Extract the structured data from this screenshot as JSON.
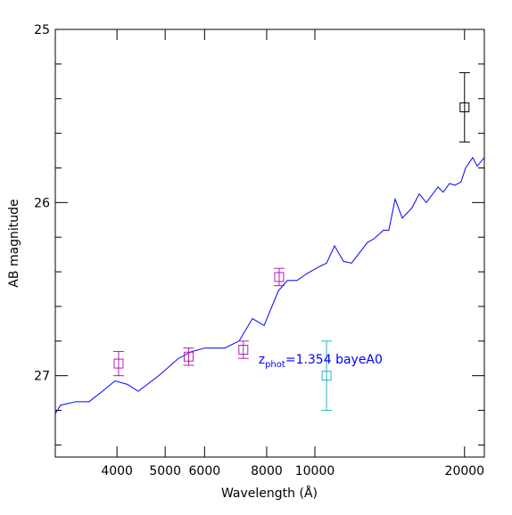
{
  "chart_data": {
    "type": "line",
    "xlabel": "Wavelength (Å)",
    "ylabel": "AB magnitude",
    "xlog": true,
    "xlim": [
      3006,
      21920
    ],
    "ylim": [
      27.47,
      25
    ],
    "xticks": [
      4000,
      5000,
      6000,
      8000,
      10000,
      20000
    ],
    "yticks": [
      25,
      26,
      27
    ],
    "yminor": [
      25.2,
      25.4,
      25.6,
      25.8,
      26.2,
      26.4,
      26.6,
      26.8,
      27.2,
      27.4
    ],
    "series": [
      {
        "color": "#0000ff",
        "x": [
          3006,
          3081,
          3304,
          3515,
          3739,
          3963,
          4197,
          4413,
          4854,
          5318,
          5656,
          6016,
          6590,
          7040,
          7490,
          7904,
          8446,
          8804,
          9211,
          9637,
          10214,
          10556,
          10955,
          11418,
          11850,
          12760,
          13135,
          13745,
          14083,
          14504,
          14990,
          15686,
          16210,
          16757,
          17680,
          18124,
          18654,
          19125,
          19683,
          20098,
          20770,
          21205,
          21920
        ],
        "values": [
          27.22,
          27.17,
          27.15,
          27.15,
          27.09,
          27.03,
          27.05,
          27.09,
          27.0,
          26.9,
          26.86,
          26.84,
          26.84,
          26.8,
          26.67,
          26.71,
          26.51,
          26.45,
          26.45,
          26.41,
          26.37,
          26.35,
          26.25,
          26.34,
          26.35,
          26.23,
          26.21,
          26.16,
          26.16,
          25.98,
          26.09,
          26.03,
          25.95,
          26.0,
          25.91,
          25.94,
          25.89,
          25.9,
          25.88,
          25.8,
          25.74,
          25.79,
          25.74
        ]
      }
    ],
    "points": [
      {
        "color": "#b020b0",
        "x": [
          4030,
          5574,
          7180,
          8476
        ],
        "values": [
          26.93,
          26.89,
          26.85,
          26.43
        ],
        "errors": [
          0.07,
          0.05,
          0.05,
          0.05
        ]
      },
      {
        "color": "#20b8c0",
        "x": [
          10556
        ],
        "values": [
          27.0
        ],
        "errors": [
          0.2
        ]
      },
      {
        "color": "#000000",
        "x": [
          20000
        ],
        "values": [
          25.45
        ],
        "errors": [
          0.2
        ]
      }
    ],
    "annotation": {
      "color": "#0000ff",
      "x": 7700,
      "y": 26.93,
      "parts": [
        "z",
        "phot",
        "=1.354 bayeA0"
      ]
    }
  }
}
